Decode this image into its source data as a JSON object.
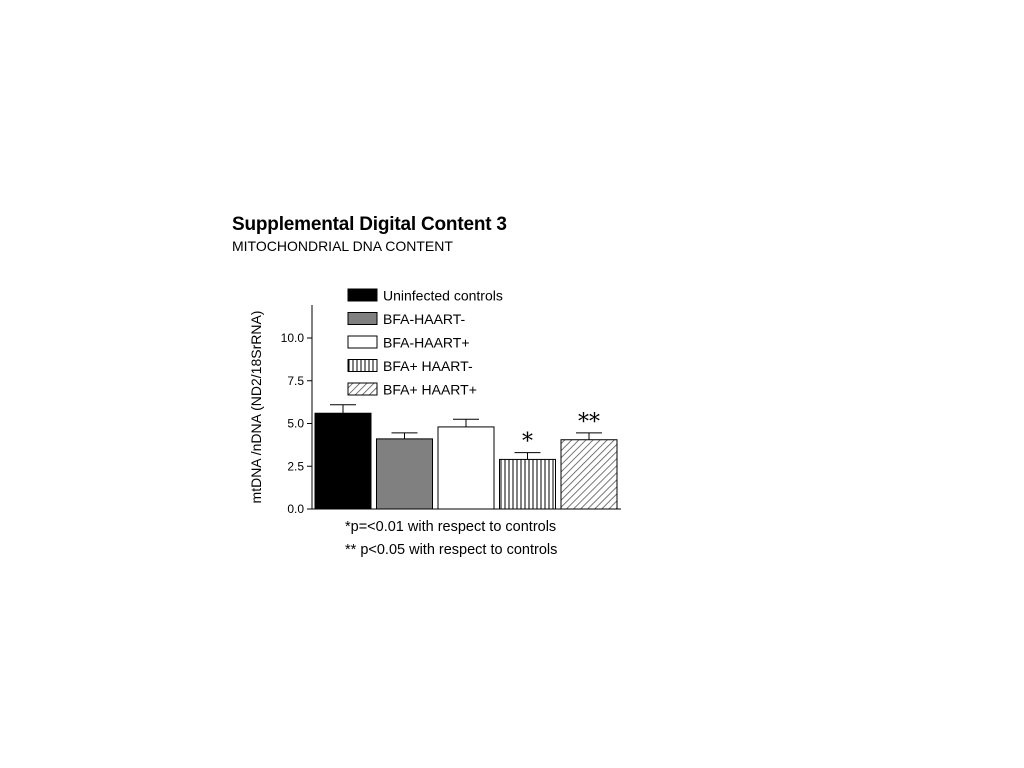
{
  "header": {
    "title": "Supplemental Digital Content 3",
    "subtitle": "MITOCHONDRIAL DNA CONTENT"
  },
  "footnotes": [
    "*p=<0.01 with respect to controls",
    "** p<0.05 with respect to controls"
  ],
  "chart_data": {
    "type": "bar",
    "title": "",
    "xlabel": "",
    "ylabel": "mtDNA /nDNA (ND2/18SrRNA)",
    "ylim": [
      0,
      12
    ],
    "yticks": [
      {
        "value": 0,
        "label": "0.0"
      },
      {
        "value": 2.5,
        "label": "2.5"
      },
      {
        "value": 5,
        "label": "5.0"
      },
      {
        "value": 7.5,
        "label": "7.5"
      },
      {
        "value": 10,
        "label": "10.0"
      }
    ],
    "grid": false,
    "legend_position": "top",
    "series": [
      {
        "name": "Uninfected controls",
        "value": 5.6,
        "error": 0.5,
        "fill": "#000000",
        "pattern": "solid",
        "significance": ""
      },
      {
        "name": "BFA-HAART-",
        "value": 4.1,
        "error": 0.35,
        "fill": "#808080",
        "pattern": "solid",
        "significance": ""
      },
      {
        "name": "BFA-HAART+",
        "value": 4.8,
        "error": 0.45,
        "fill": "#ffffff",
        "pattern": "solid",
        "significance": ""
      },
      {
        "name": "BFA+ HAART-",
        "value": 2.9,
        "error": 0.4,
        "fill": "#ffffff",
        "pattern": "vertical-lines",
        "significance": "*"
      },
      {
        "name": "BFA+ HAART+",
        "value": 4.05,
        "error": 0.4,
        "fill": "#ffffff",
        "pattern": "diagonal-hatch",
        "significance": "**"
      }
    ]
  }
}
